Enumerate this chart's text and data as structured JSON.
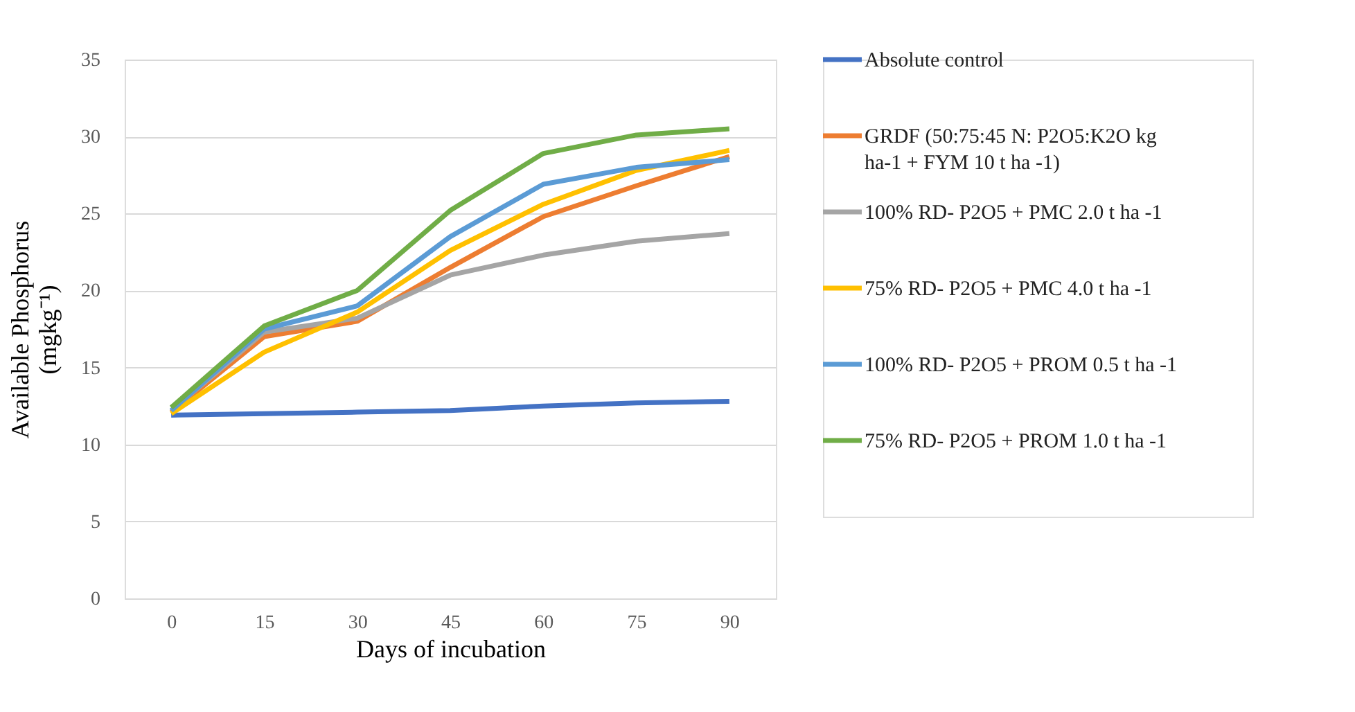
{
  "chart_data": {
    "type": "line",
    "xlabel": "Days of incubation",
    "ylabel": "Available Phosphorus (mgkg⁻¹)",
    "categories": [
      "0",
      "15",
      "30",
      "45",
      "60",
      "75",
      "90"
    ],
    "series": [
      {
        "name": "Absolute control",
        "color": "#4472c4",
        "values": [
          11.9,
          12.0,
          12.1,
          12.2,
          12.5,
          12.7,
          12.8
        ]
      },
      {
        "name": "GRDF (50:75:45 N: P2O5:K2O kg ha-1 + FYM 10 t ha -1)",
        "color": "#ed7d31",
        "values": [
          12.1,
          17.0,
          18.0,
          21.5,
          24.8,
          26.8,
          28.7
        ]
      },
      {
        "name": "100% RD- P2O5 + PMC 2.0 t ha -1",
        "color": "#a5a5a5",
        "values": [
          12.2,
          17.3,
          18.2,
          21.0,
          22.3,
          23.2,
          23.7
        ]
      },
      {
        "name": "75% RD- P2O5 + PMC 4.0 t ha -1",
        "color": "#ffc000",
        "values": [
          12.0,
          16.0,
          18.6,
          22.6,
          25.6,
          27.8,
          29.1
        ]
      },
      {
        "name": "100% RD- P2O5 + PROM 0.5 t ha -1",
        "color": "#5b9bd5",
        "values": [
          12.2,
          17.5,
          19.0,
          23.5,
          26.9,
          28.0,
          28.5
        ]
      },
      {
        "name": "75% RD- P2O5 + PROM 1.0 t ha -1",
        "color": "#70ad47",
        "values": [
          12.4,
          17.7,
          20.0,
          25.2,
          28.9,
          30.1,
          30.5
        ]
      }
    ],
    "ylim": [
      0,
      35
    ],
    "yticks": [
      0,
      5,
      10,
      15,
      20,
      25,
      30,
      35
    ],
    "grid": "y",
    "legend": "right",
    "marker": "none",
    "line_style": "solid"
  }
}
